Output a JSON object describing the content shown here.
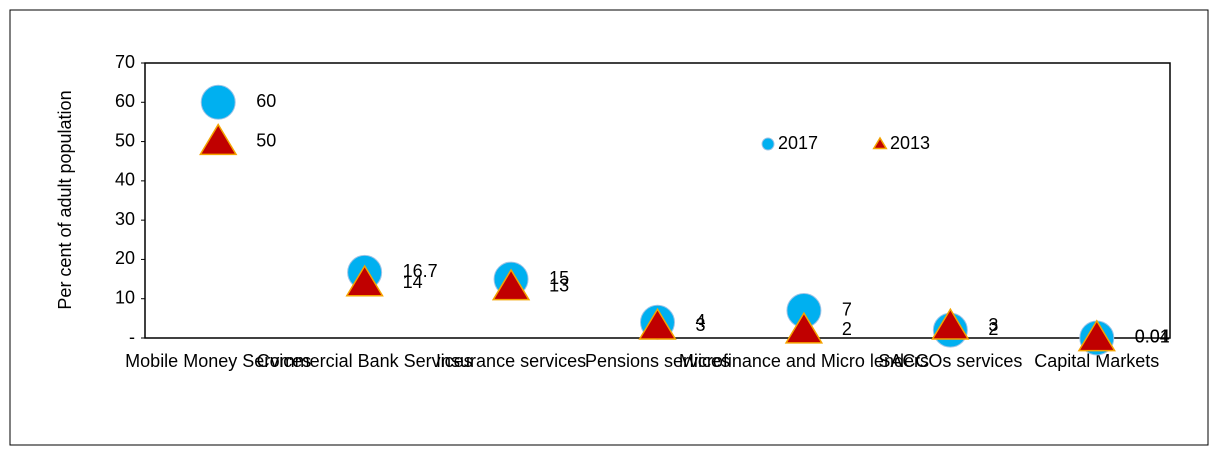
{
  "chart_data": {
    "type": "scatter",
    "y_label": "Per cent of adult population",
    "categories": [
      "Mobile Money Services",
      "Commercial Bank Services",
      "Insurance services",
      "Pensions services",
      "Microfinance and Micro lenders",
      "SACCOs services",
      "Capital Markets"
    ],
    "series": [
      {
        "name": "2017",
        "color": "#00b0f0",
        "marker": "circle",
        "values": [
          60,
          16.7,
          15,
          4,
          7,
          2,
          0.01
        ]
      },
      {
        "name": "2013",
        "color": "#c00000",
        "label_color": "#ff0000",
        "marker": "triangle",
        "values": [
          50,
          14,
          13,
          3,
          2,
          3,
          0.04
        ]
      }
    ],
    "ylim": [
      0,
      70
    ],
    "yticks": [
      {
        "value": 0,
        "label": "-"
      },
      10,
      20,
      30,
      40,
      50,
      60,
      70
    ]
  }
}
